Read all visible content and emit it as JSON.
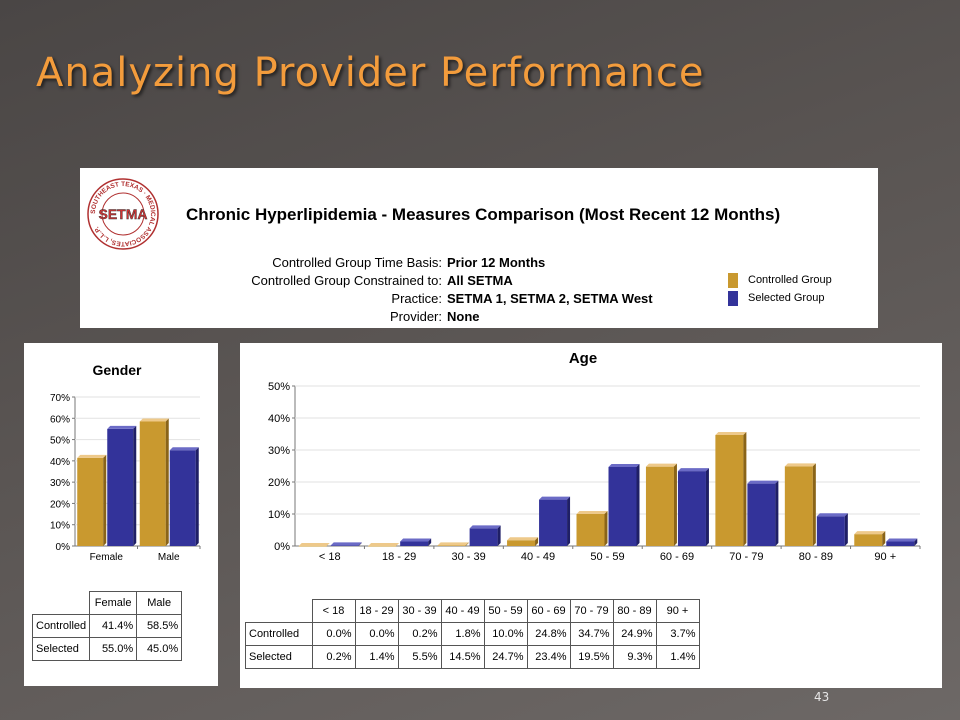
{
  "slide": {
    "title": "Analyzing Provider Performance",
    "page_number": "43"
  },
  "header": {
    "logo_text": "SETMA",
    "logo_ring_text": "SOUTHEAST TEXAS · MEDICAL ASSOCIATES, L.L.P.",
    "report_title": "Chronic Hyperlipidemia -  Measures Comparison (Most Recent 12 Months)",
    "rows": [
      {
        "label": "Controlled Group Time Basis:",
        "value": "Prior 12 Months"
      },
      {
        "label": "Controlled Group Constrained to:",
        "value": "All SETMA"
      },
      {
        "label": "Practice:",
        "value": "SETMA 1, SETMA 2, SETMA West"
      },
      {
        "label": "Provider:",
        "value": "None"
      }
    ],
    "legend": [
      {
        "label": "Controlled Group",
        "color": "#c9992f"
      },
      {
        "label": "Selected Group",
        "color": "#33339a"
      }
    ]
  },
  "colors": {
    "controlled": "#c9992f",
    "controlled_top": "#eec98a",
    "controlled_side": "#8a6418",
    "selected": "#33339a",
    "selected_top": "#6b6bc6",
    "selected_side": "#1f1f66"
  },
  "chart_data": [
    {
      "type": "bar",
      "title": "Gender",
      "categories": [
        "Female",
        "Male"
      ],
      "series": [
        {
          "name": "Controlled",
          "values": [
            41.4,
            58.5
          ]
        },
        {
          "name": "Selected",
          "values": [
            55.0,
            45.0
          ]
        }
      ],
      "ylim": [
        0,
        70
      ],
      "yticks": [
        0,
        10,
        20,
        30,
        40,
        50,
        60,
        70
      ],
      "ytick_labels": [
        "0%",
        "10%",
        "20%",
        "30%",
        "40%",
        "50%",
        "60%",
        "70%"
      ],
      "table": {
        "columns": [
          "Female",
          "Male"
        ],
        "rows": [
          {
            "label": "Controlled",
            "cells": [
              "41.4%",
              "58.5%"
            ]
          },
          {
            "label": "Selected",
            "cells": [
              "55.0%",
              "45.0%"
            ]
          }
        ]
      }
    },
    {
      "type": "bar",
      "title": "Age",
      "categories": [
        "< 18",
        "18 - 29",
        "30 - 39",
        "40 - 49",
        "50 - 59",
        "60 - 69",
        "70 - 79",
        "80 - 89",
        "90 +"
      ],
      "series": [
        {
          "name": "Controlled",
          "values": [
            0.0,
            0.0,
            0.2,
            1.8,
            10.0,
            24.8,
            34.7,
            24.9,
            3.7
          ]
        },
        {
          "name": "Selected",
          "values": [
            0.2,
            1.4,
            5.5,
            14.5,
            24.7,
            23.4,
            19.5,
            9.3,
            1.4
          ]
        }
      ],
      "ylim": [
        0,
        50
      ],
      "yticks": [
        0,
        10,
        20,
        30,
        40,
        50
      ],
      "ytick_labels": [
        "0%",
        "10%",
        "20%",
        "30%",
        "40%",
        "50%"
      ],
      "table": {
        "columns": [
          "< 18",
          "18 - 29",
          "30 - 39",
          "40 - 49",
          "50 - 59",
          "60 - 69",
          "70 - 79",
          "80 - 89",
          "90 +"
        ],
        "rows": [
          {
            "label": "Controlled",
            "cells": [
              "0.0%",
              "0.0%",
              "0.2%",
              "1.8%",
              "10.0%",
              "24.8%",
              "34.7%",
              "24.9%",
              "3.7%"
            ]
          },
          {
            "label": "Selected",
            "cells": [
              "0.2%",
              "1.4%",
              "5.5%",
              "14.5%",
              "24.7%",
              "23.4%",
              "19.5%",
              "9.3%",
              "1.4%"
            ]
          }
        ]
      }
    }
  ]
}
